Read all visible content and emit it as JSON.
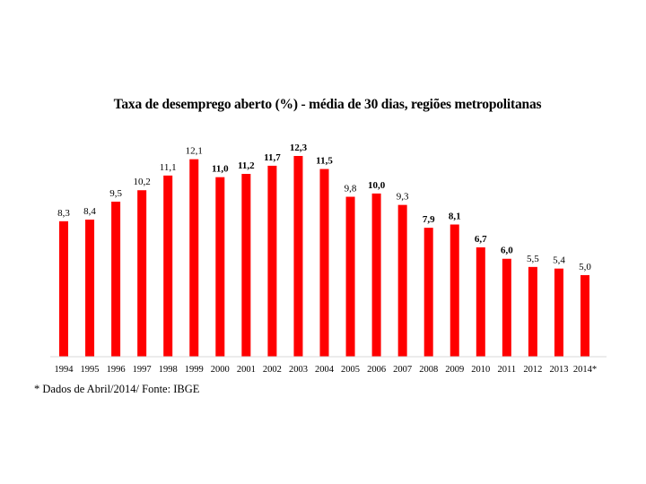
{
  "chart_data": {
    "type": "bar",
    "title": "Taxa de desemprego aberto (%) - média de 30 dias, regiões metropolitanas",
    "categories": [
      "1994",
      "1995",
      "1996",
      "1997",
      "1998",
      "1999",
      "2000",
      "2001",
      "2002",
      "2003",
      "2004",
      "2005",
      "2006",
      "2007",
      "2008",
      "2009",
      "2010",
      "2011",
      "2012",
      "2013",
      "2014*"
    ],
    "values": [
      8.3,
      8.4,
      9.5,
      10.2,
      11.1,
      12.1,
      11.0,
      11.2,
      11.7,
      12.3,
      11.5,
      9.8,
      10.0,
      9.3,
      7.9,
      8.1,
      6.7,
      6.0,
      5.5,
      5.4,
      5.0
    ],
    "value_labels": [
      "8,3",
      "8,4",
      "9,5",
      "10,2",
      "11,1",
      "12,1",
      "11,0",
      "11,2",
      "11,7",
      "12,3",
      "11,5",
      "9,8",
      "10,0",
      "9,3",
      "7,9",
      "8,1",
      "6,7",
      "6,0",
      "5,5",
      "5,4",
      "5,0"
    ],
    "xlabel": "",
    "ylabel": "",
    "ylim": [
      0,
      12.3
    ],
    "grid": false,
    "legend": "none",
    "bar_color": "#ff0000",
    "footnote": "* Dados de Abril/2014/ Fonte: IBGE"
  }
}
